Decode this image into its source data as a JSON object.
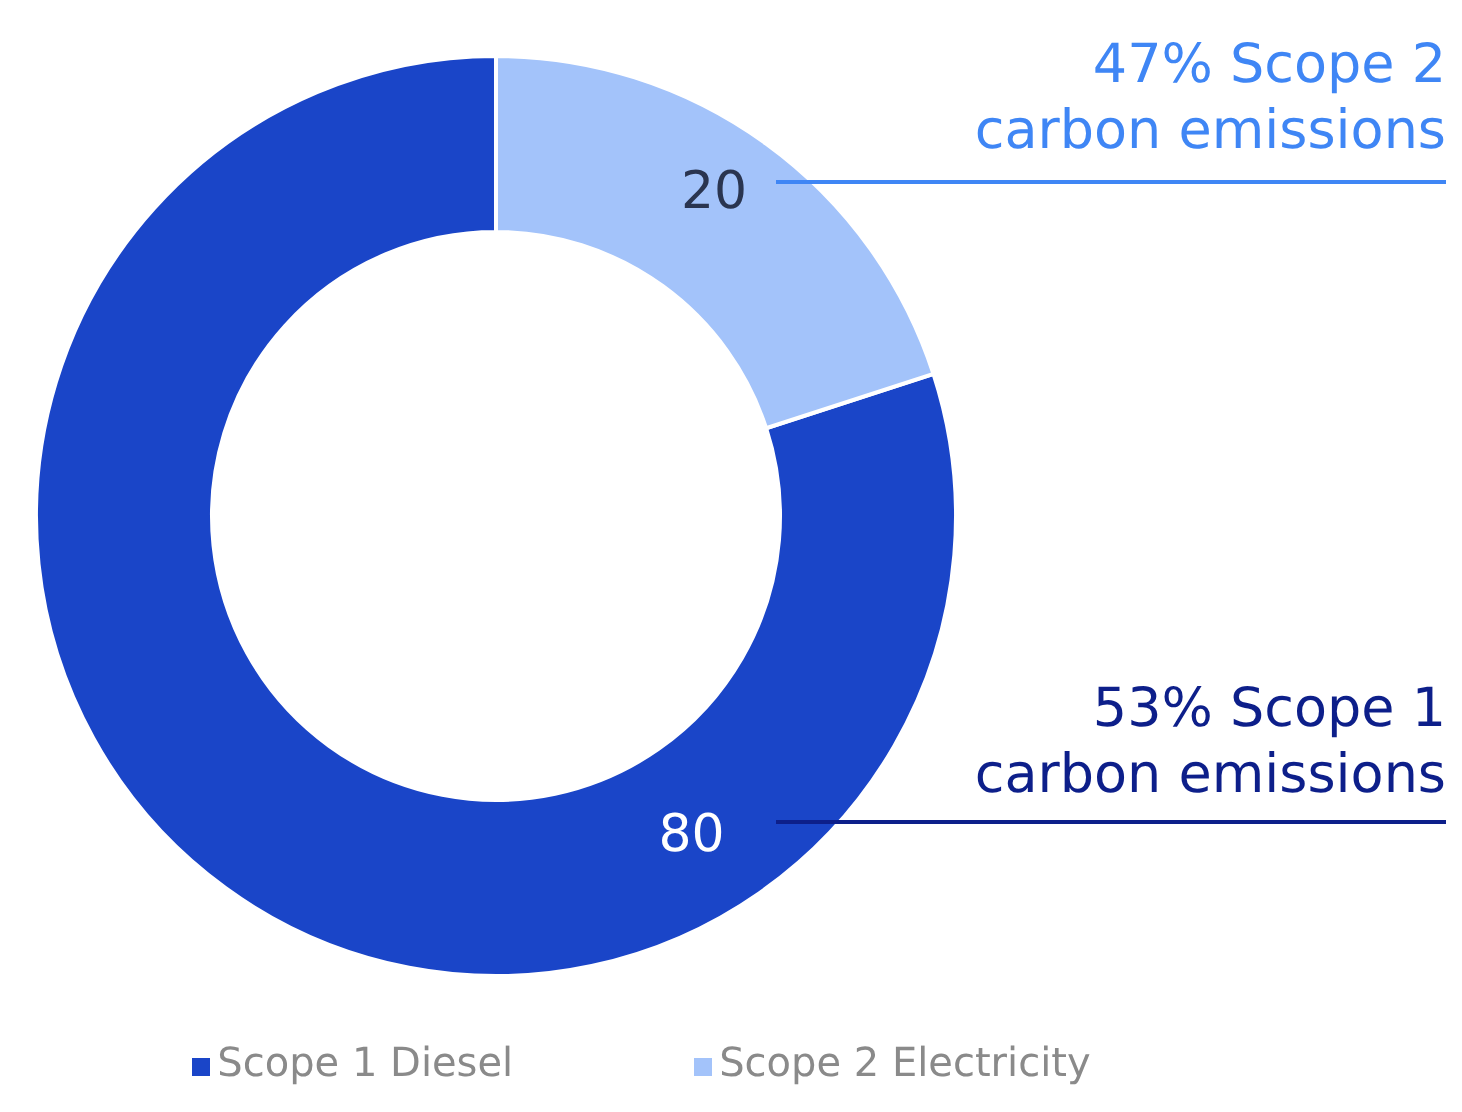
{
  "chart_data": {
    "type": "donut",
    "categories": [
      "Scope 1 Diesel",
      "Scope 2 Electricity"
    ],
    "values": [
      80,
      20
    ],
    "colors": [
      "#1a45c8",
      "#a3c3fa"
    ],
    "data_labels": true,
    "legend": "bottom",
    "annotations": [
      "53% Scope 1\ncarbon emissions",
      "47% Scope 2\ncarbon emissions"
    ]
  }
}
